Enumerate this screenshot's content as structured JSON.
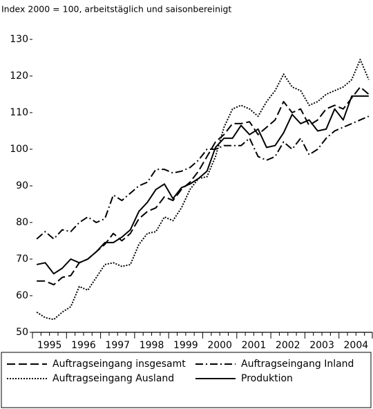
{
  "chart_data": {
    "type": "line",
    "subtitle": "Index 2000 = 100, arbeitstäglich und saisonbereinigt",
    "x": [
      1995.125,
      1995.375,
      1995.625,
      1995.875,
      1996.125,
      1996.375,
      1996.625,
      1996.875,
      1997.125,
      1997.375,
      1997.625,
      1997.875,
      1998.125,
      1998.375,
      1998.625,
      1998.875,
      1999.125,
      1999.375,
      1999.625,
      1999.875,
      2000.125,
      2000.375,
      2000.625,
      2000.875,
      2001.125,
      2001.375,
      2001.625,
      2001.875,
      2002.125,
      2002.375,
      2002.625,
      2002.875,
      2003.125,
      2003.375,
      2003.625,
      2003.875,
      2004.125,
      2004.375,
      2004.625,
      2004.875
    ],
    "xlim": [
      1995,
      2005
    ],
    "year_labels": [
      1995,
      1996,
      1997,
      1998,
      1999,
      2000,
      2001,
      2002,
      2003,
      2004
    ],
    "ylim": [
      50,
      130
    ],
    "yticks": [
      50,
      60,
      70,
      80,
      90,
      100,
      110,
      120,
      130
    ],
    "series": [
      {
        "name": "Auftragseingang insgesamt",
        "color": "#000000",
        "style": "dashed",
        "values": [
          64,
          64,
          63,
          65,
          65.5,
          69,
          70,
          72,
          74,
          77,
          75,
          77,
          81,
          83,
          84,
          87,
          86,
          89,
          91,
          94,
          98,
          102,
          104,
          107,
          107,
          107.5,
          104,
          106,
          108,
          113,
          110,
          111,
          106.5,
          108,
          111,
          112,
          111,
          114,
          117,
          115
        ]
      },
      {
        "name": "Auftragseingang Inland",
        "color": "#000000",
        "style": "dashdot",
        "values": [
          75.5,
          77.5,
          75.5,
          78,
          77.5,
          80,
          81.5,
          80,
          81,
          87.5,
          86,
          88,
          90,
          91,
          94.5,
          94.5,
          93.5,
          94,
          95,
          97,
          100,
          100,
          101,
          101,
          101,
          103,
          98,
          97,
          98,
          102,
          100,
          103,
          98.5,
          100,
          103,
          105,
          106,
          107,
          108,
          109
        ]
      },
      {
        "name": "Auftragseingang Ausland",
        "color": "#000000",
        "style": "dotted",
        "values": [
          55.5,
          54,
          53.5,
          55.5,
          57,
          62.5,
          61.5,
          65,
          68.5,
          69,
          68,
          68.5,
          74,
          77,
          77.5,
          81.5,
          80.5,
          84,
          89,
          92,
          92.5,
          98,
          106,
          111,
          112,
          111,
          109,
          113,
          116,
          120.5,
          117,
          116,
          112,
          113,
          115,
          116,
          117,
          119,
          124.5,
          119
        ]
      },
      {
        "name": "Produktion",
        "color": "#000000",
        "style": "solid",
        "values": [
          68.5,
          69,
          66,
          67.5,
          70,
          69,
          70,
          72,
          74.5,
          74.5,
          76,
          78,
          83,
          85.5,
          89,
          90.5,
          86.5,
          89.5,
          90.5,
          92,
          94,
          100.5,
          103,
          103,
          106.5,
          104,
          105.5,
          100.5,
          101,
          104.5,
          109.5,
          107,
          108,
          105,
          105.5,
          111,
          108,
          114.5,
          114.5,
          114.5
        ]
      }
    ]
  }
}
